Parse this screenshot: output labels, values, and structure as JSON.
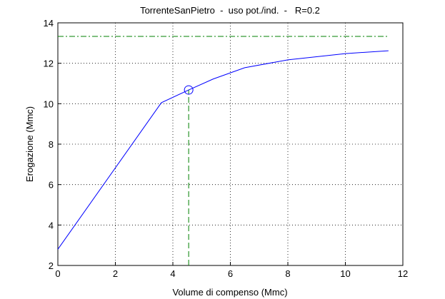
{
  "chart_data": {
    "type": "line",
    "title": "TorrenteSanPietro  -  uso pot./ind.  -   R=0.2",
    "xlabel": "Volume di compenso (Mmc)",
    "ylabel": "Erogazione (Mmc)",
    "x": [
      0,
      3.6,
      4.55,
      5.4,
      6.5,
      8,
      10,
      11.5
    ],
    "series": [
      {
        "color": "#0000ff",
        "values": [
          2.8,
          10.05,
          10.68,
          11.22,
          11.78,
          12.17,
          12.48,
          12.62
        ]
      }
    ],
    "hline": {
      "value": 13.33,
      "color": "#008000"
    },
    "marker": {
      "x": 4.55,
      "y": 10.68,
      "color": "#0000ff",
      "guide_color": "#008000"
    },
    "xlim": [
      0,
      12
    ],
    "ylim": [
      2,
      14
    ],
    "xticks": [
      0,
      2,
      4,
      6,
      8,
      10,
      12
    ],
    "yticks": [
      2,
      4,
      6,
      8,
      10,
      12,
      14
    ],
    "grid": true
  }
}
